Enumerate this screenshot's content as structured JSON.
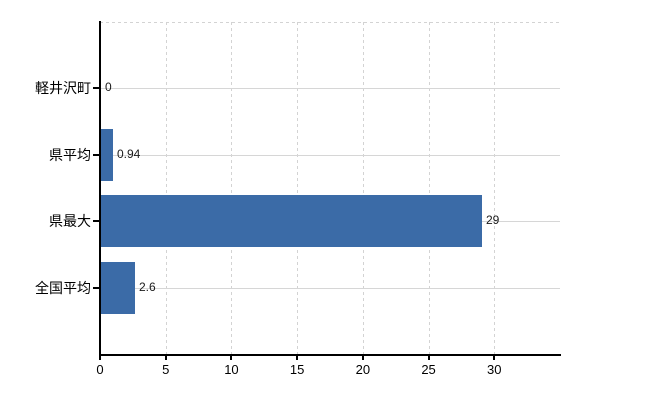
{
  "chart_data": {
    "type": "bar",
    "orientation": "horizontal",
    "title": "",
    "xlabel": "",
    "ylabel": "",
    "categories": [
      "軽井沢町",
      "県平均",
      "県最大",
      "全国平均"
    ],
    "values": [
      0,
      0.94,
      29,
      2.6
    ],
    "value_labels": [
      "0",
      "0.94",
      "29",
      "2.6"
    ],
    "xlim": [
      0,
      35
    ],
    "xticks": [
      0,
      5,
      10,
      15,
      20,
      25,
      30
    ],
    "xtick_labels": [
      "0",
      "5",
      "10",
      "15",
      "20",
      "25",
      "30"
    ],
    "grid": true,
    "legend": false,
    "colors": {
      "bar": "#3b6ba7",
      "grid": "#d3d3d3",
      "category_grid": "#d6d6d6",
      "axis": "#000000",
      "text": "#000000",
      "background": "#ffffff"
    }
  }
}
